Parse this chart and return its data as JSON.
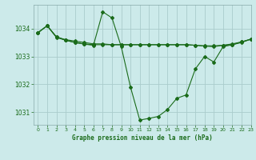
{
  "title": "Graphe pression niveau de la mer (hPa)",
  "background_color": "#cceaea",
  "grid_color": "#aacccc",
  "line_color": "#1a6b1a",
  "marker_color": "#1a6b1a",
  "xlim": [
    -0.5,
    23
  ],
  "ylim": [
    1030.55,
    1034.85
  ],
  "yticks": [
    1031,
    1032,
    1033,
    1034
  ],
  "xticks": [
    0,
    1,
    2,
    3,
    4,
    5,
    6,
    7,
    8,
    9,
    10,
    11,
    12,
    13,
    14,
    15,
    16,
    17,
    18,
    19,
    20,
    21,
    22,
    23
  ],
  "series1_x": [
    0,
    1,
    2,
    3,
    4,
    5,
    6,
    7,
    8,
    9,
    10,
    11,
    12,
    13,
    14,
    15,
    16,
    17,
    18,
    19,
    20,
    21,
    22,
    23
  ],
  "series1_y": [
    1033.85,
    1034.1,
    1033.7,
    1033.6,
    1033.55,
    1033.5,
    1033.45,
    1033.45,
    1033.42,
    1033.42,
    1033.42,
    1033.42,
    1033.42,
    1033.42,
    1033.42,
    1033.42,
    1033.42,
    1033.4,
    1033.38,
    1033.38,
    1033.4,
    1033.42,
    1033.5,
    1033.62
  ],
  "series2_x": [
    0,
    1,
    2,
    3,
    4,
    5,
    6,
    7,
    8,
    9,
    10,
    11,
    12,
    13,
    14,
    15,
    16,
    17,
    18,
    19,
    20,
    21,
    22,
    23
  ],
  "series2_y": [
    1033.85,
    1034.1,
    1033.7,
    1033.58,
    1033.5,
    1033.45,
    1033.42,
    1033.42,
    1033.42,
    1033.42,
    1033.42,
    1033.42,
    1033.42,
    1033.42,
    1033.42,
    1033.42,
    1033.42,
    1033.4,
    1033.37,
    1033.35,
    1033.4,
    1033.45,
    1033.52,
    1033.62
  ],
  "series3_x": [
    0,
    1,
    2,
    3,
    4,
    5,
    6,
    7,
    8,
    9,
    10,
    11,
    12,
    13,
    14,
    15,
    16,
    17,
    18,
    19,
    20,
    21,
    22,
    23
  ],
  "series3_y": [
    1033.85,
    1034.1,
    1033.68,
    1033.58,
    1033.5,
    1033.44,
    1033.4,
    1034.6,
    1034.38,
    1033.35,
    1031.9,
    1030.72,
    1030.78,
    1030.85,
    1031.1,
    1031.5,
    1031.62,
    1032.55,
    1033.0,
    1032.8,
    1033.35,
    1033.42,
    1033.52,
    1033.62
  ]
}
